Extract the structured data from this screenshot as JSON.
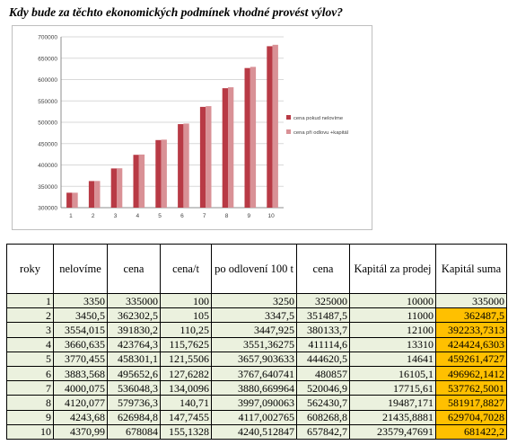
{
  "title": "Kdy bude za těchto ekonomických podmínek vhodné provést výlov?",
  "chart_data": {
    "type": "bar",
    "categories": [
      "1",
      "2",
      "3",
      "4",
      "5",
      "6",
      "7",
      "8",
      "9",
      "10"
    ],
    "series": [
      {
        "name": "cena pokud nelovíme",
        "color": "#b83a45",
        "values": [
          335000,
          362302.5,
          391830.2,
          423764.3,
          458301.1,
          495652.6,
          536048.3,
          579736.3,
          626984.8,
          678084
        ]
      },
      {
        "name": "cena při odlovu +kapitál",
        "color": "#d99196",
        "values": [
          335000,
          362487.5,
          392233.7313,
          424424.6303,
          459261.4727,
          496962.1412,
          537762.5001,
          581917.8827,
          629704.7028,
          681422.2
        ]
      }
    ],
    "ylim": [
      300000,
      700000
    ],
    "yticks": [
      "300000",
      "350000",
      "400000",
      "450000",
      "500000",
      "550000",
      "600000",
      "650000",
      "700000"
    ],
    "legend_position": "right"
  },
  "table": {
    "headers": [
      "roky",
      "nelovíme",
      "cena",
      "cena/t",
      "po odlovení 100 t",
      "cena",
      "Kapitál za prodej",
      "Kapitál suma"
    ],
    "rows": [
      [
        "1",
        "3350",
        "335000",
        "100",
        "3250",
        "325000",
        "10000",
        "335000"
      ],
      [
        "2",
        "3450,5",
        "362302,5",
        "105",
        "3347,5",
        "351487,5",
        "11000",
        "362487,5"
      ],
      [
        "3",
        "3554,015",
        "391830,2",
        "110,25",
        "3447,925",
        "380133,7",
        "12100",
        "392233,7313"
      ],
      [
        "4",
        "3660,635",
        "423764,3",
        "115,7625",
        "3551,36275",
        "411114,6",
        "13310",
        "424424,6303"
      ],
      [
        "5",
        "3770,455",
        "458301,1",
        "121,5506",
        "3657,903633",
        "444620,5",
        "14641",
        "459261,4727"
      ],
      [
        "6",
        "3883,568",
        "495652,6",
        "127,6282",
        "3767,640741",
        "480857",
        "16105,1",
        "496962,1412"
      ],
      [
        "7",
        "4000,075",
        "536048,3",
        "134,0096",
        "3880,669964",
        "520046,9",
        "17715,61",
        "537762,5001"
      ],
      [
        "8",
        "4120,077",
        "579736,3",
        "140,71",
        "3997,090063",
        "562430,7",
        "19487,171",
        "581917,8827"
      ],
      [
        "9",
        "4243,68",
        "626984,8",
        "147,7455",
        "4117,002765",
        "608268,8",
        "21435,8881",
        "629704,7028"
      ],
      [
        "10",
        "4370,99",
        "678084",
        "155,1328",
        "4240,512847",
        "657842,7",
        "23579,47691",
        "681422,2"
      ]
    ],
    "highlight_color": "#ffc000",
    "cell_color": "#ebf1de"
  }
}
